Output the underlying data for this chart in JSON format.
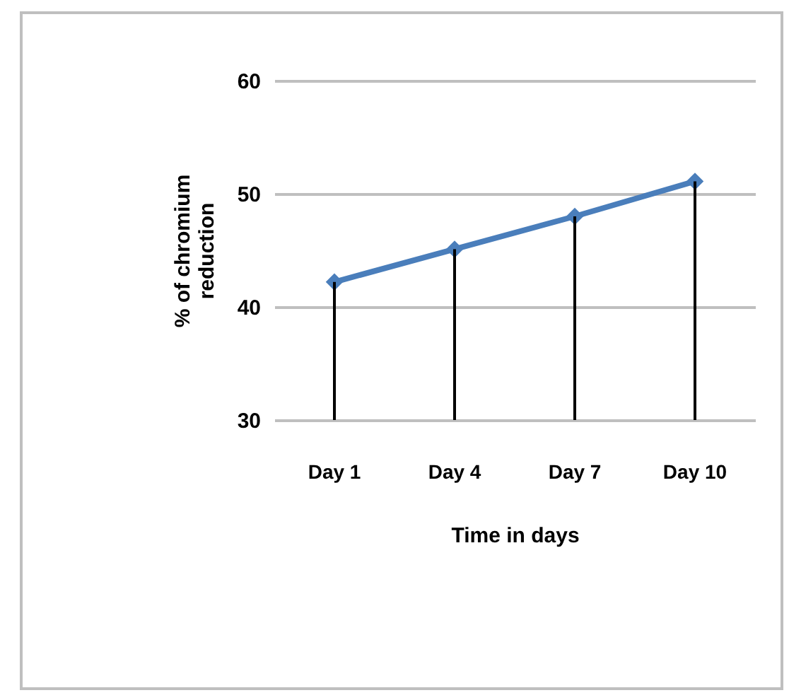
{
  "chart_data": {
    "type": "line",
    "xlabel": "Time in days",
    "ylabel": "% of chromium reduction",
    "categories": [
      "Day 1",
      "Day 4",
      "Day 7",
      "Day 10"
    ],
    "series": [
      {
        "type": "bar",
        "color": "#000000",
        "values": [
          42.2,
          45.1,
          48,
          51.1
        ]
      },
      {
        "color": "#4a7ebb",
        "values": [
          42.2,
          45.1,
          48,
          51.1
        ]
      }
    ],
    "ylim": [
      30,
      60
    ],
    "yticks": [
      30,
      40,
      50,
      60
    ],
    "grid": "y",
    "marker": "diamond"
  }
}
